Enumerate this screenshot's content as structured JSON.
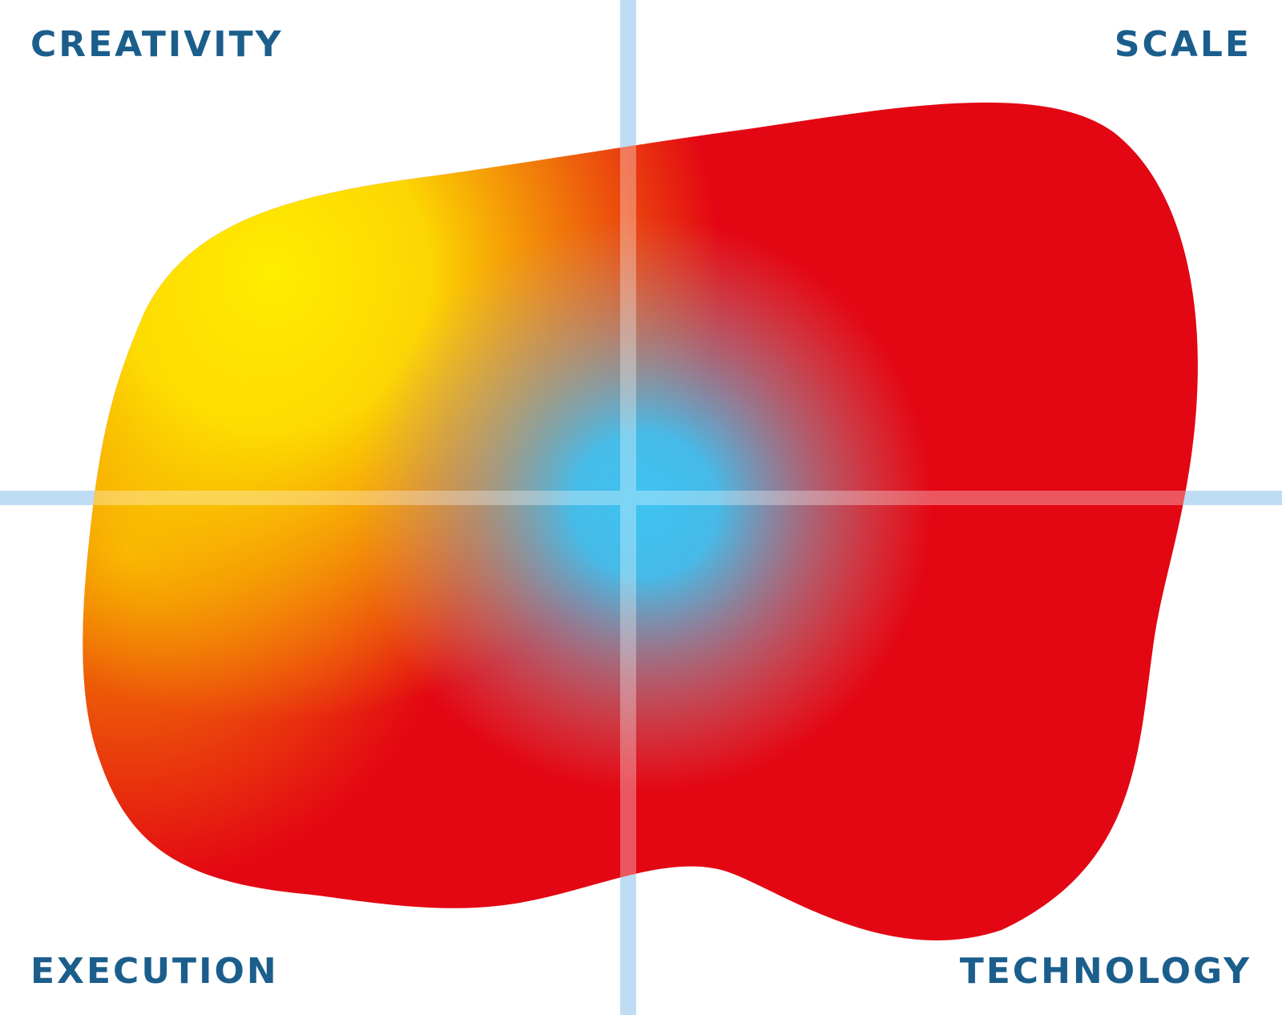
{
  "labels": {
    "top_left": "CREATIVITY",
    "top_right": "SCALE",
    "bottom_left": "EXECUTION",
    "bottom_right": "TECHNOLOGY"
  },
  "colors": {
    "label_text": "#1b5e8c",
    "axis_line": "#bfdcf5",
    "center": "#3ec3f3",
    "yellow": "#ffed00",
    "orange": "#f39200",
    "red": "#e30613"
  }
}
